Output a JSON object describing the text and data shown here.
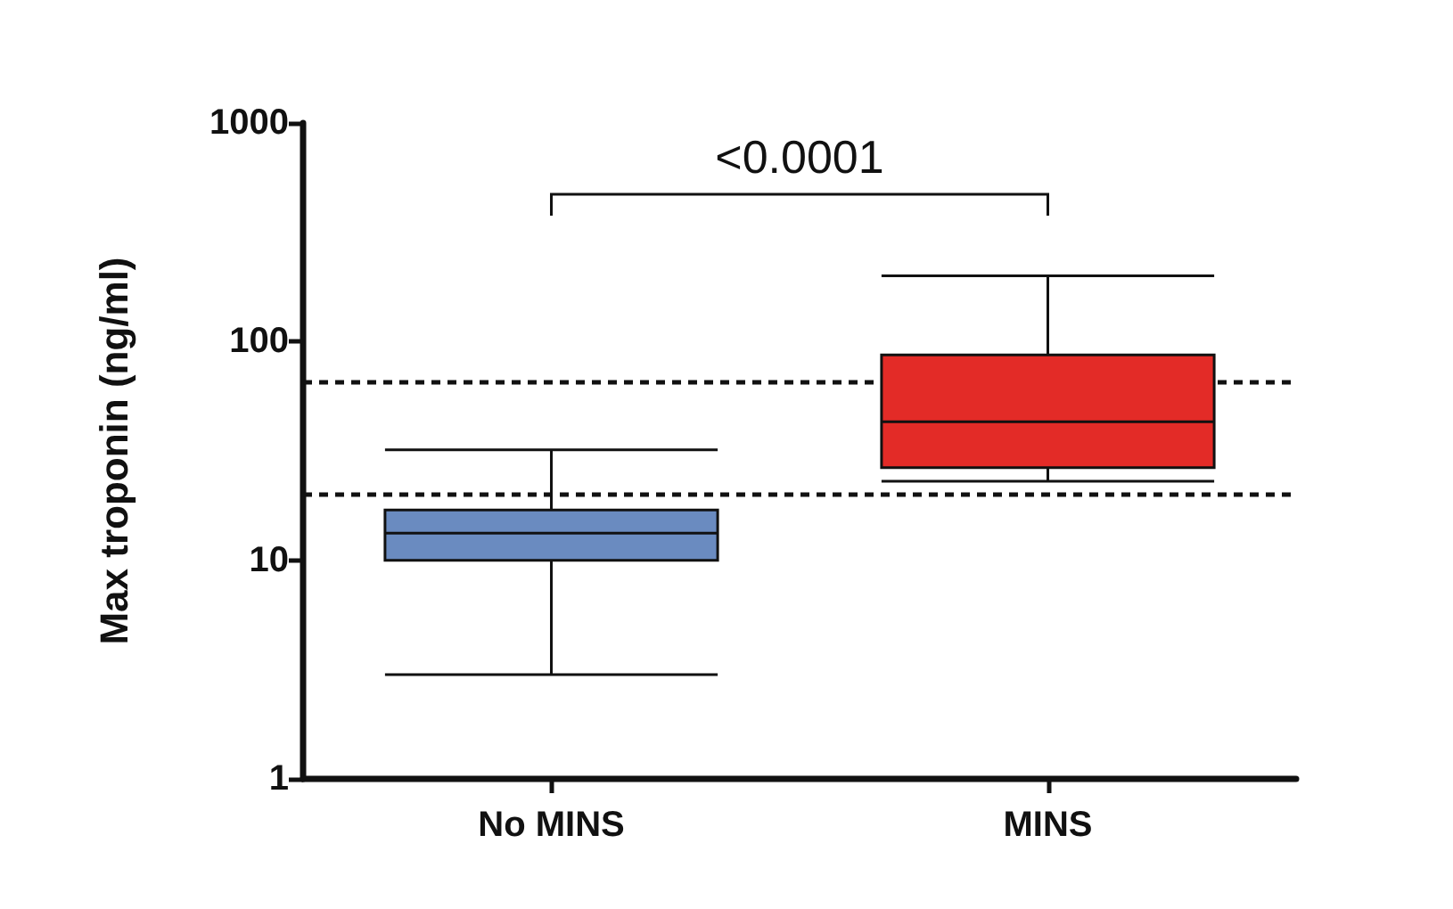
{
  "chart_data": {
    "type": "box",
    "ylabel": "Max troponin (ng/ml)",
    "categories": [
      "No MINS",
      "MINS"
    ],
    "boxes": [
      {
        "low": 3,
        "q1": 10,
        "median": 13.3,
        "q3": 17,
        "high": 32
      },
      {
        "low": 23,
        "q1": 26.5,
        "median": 43,
        "q3": 87,
        "high": 200
      }
    ],
    "colors": [
      "#6a8bc0",
      "#e32b27"
    ],
    "log": true,
    "ylim": [
      1,
      1000
    ],
    "yticks": [
      1,
      10,
      100,
      1000
    ],
    "grid": false,
    "ref_lines": [
      {
        "axis": "y",
        "value": 65,
        "line_style": "dashed"
      },
      {
        "axis": "y",
        "value": 20,
        "line_style": "dashed"
      }
    ],
    "annotations": [
      "<0.0001"
    ]
  }
}
